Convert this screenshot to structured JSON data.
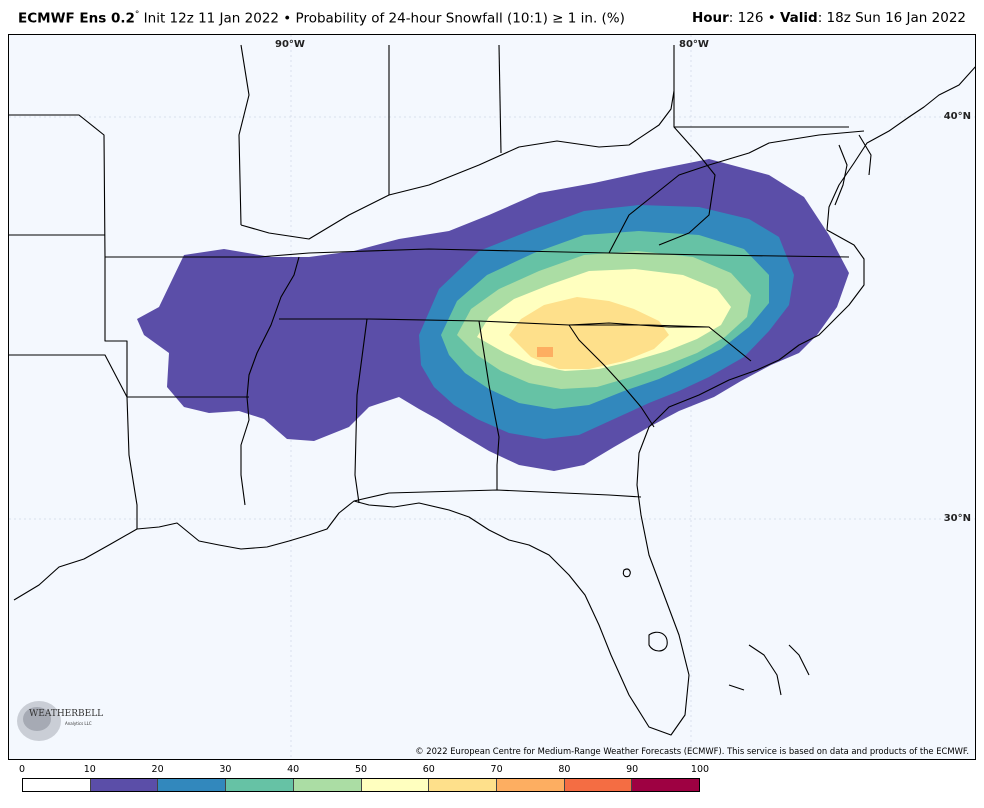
{
  "header": {
    "model": "ECMWF Ens 0.2",
    "degree": "°",
    "init": " Init 12z 11 Jan 2022 • Probability of 24-hour Snowfall (10:1) ≥ 1 in. (%)",
    "hour_label": "Hour",
    "hour_value": ": 126 • ",
    "valid_label": "Valid",
    "valid_value": ": 18z Sun 16 Jan 2022"
  },
  "map": {
    "grid_labels": {
      "lon_90": "90°W",
      "lon_80": "80°W",
      "lat_40": "40°N",
      "lat_30": "30°N"
    },
    "credit": "© 2022 European Centre for Medium-Range Weather Forecasts (ECMWF). This service is based on data and products of the ECMWF.",
    "logo": {
      "text": "WEATHERBELL",
      "subtext": "Analytics LLC"
    }
  },
  "colorbar": {
    "ticks": [
      "0",
      "10",
      "20",
      "30",
      "40",
      "50",
      "60",
      "70",
      "80",
      "90",
      "100"
    ],
    "colors": [
      "#ffffff",
      "#5b4ea8",
      "#3288bd",
      "#66c2a5",
      "#abdda4",
      "#ffffbf",
      "#fee08b",
      "#fdae61",
      "#f46d43",
      "#9e0142"
    ]
  }
}
